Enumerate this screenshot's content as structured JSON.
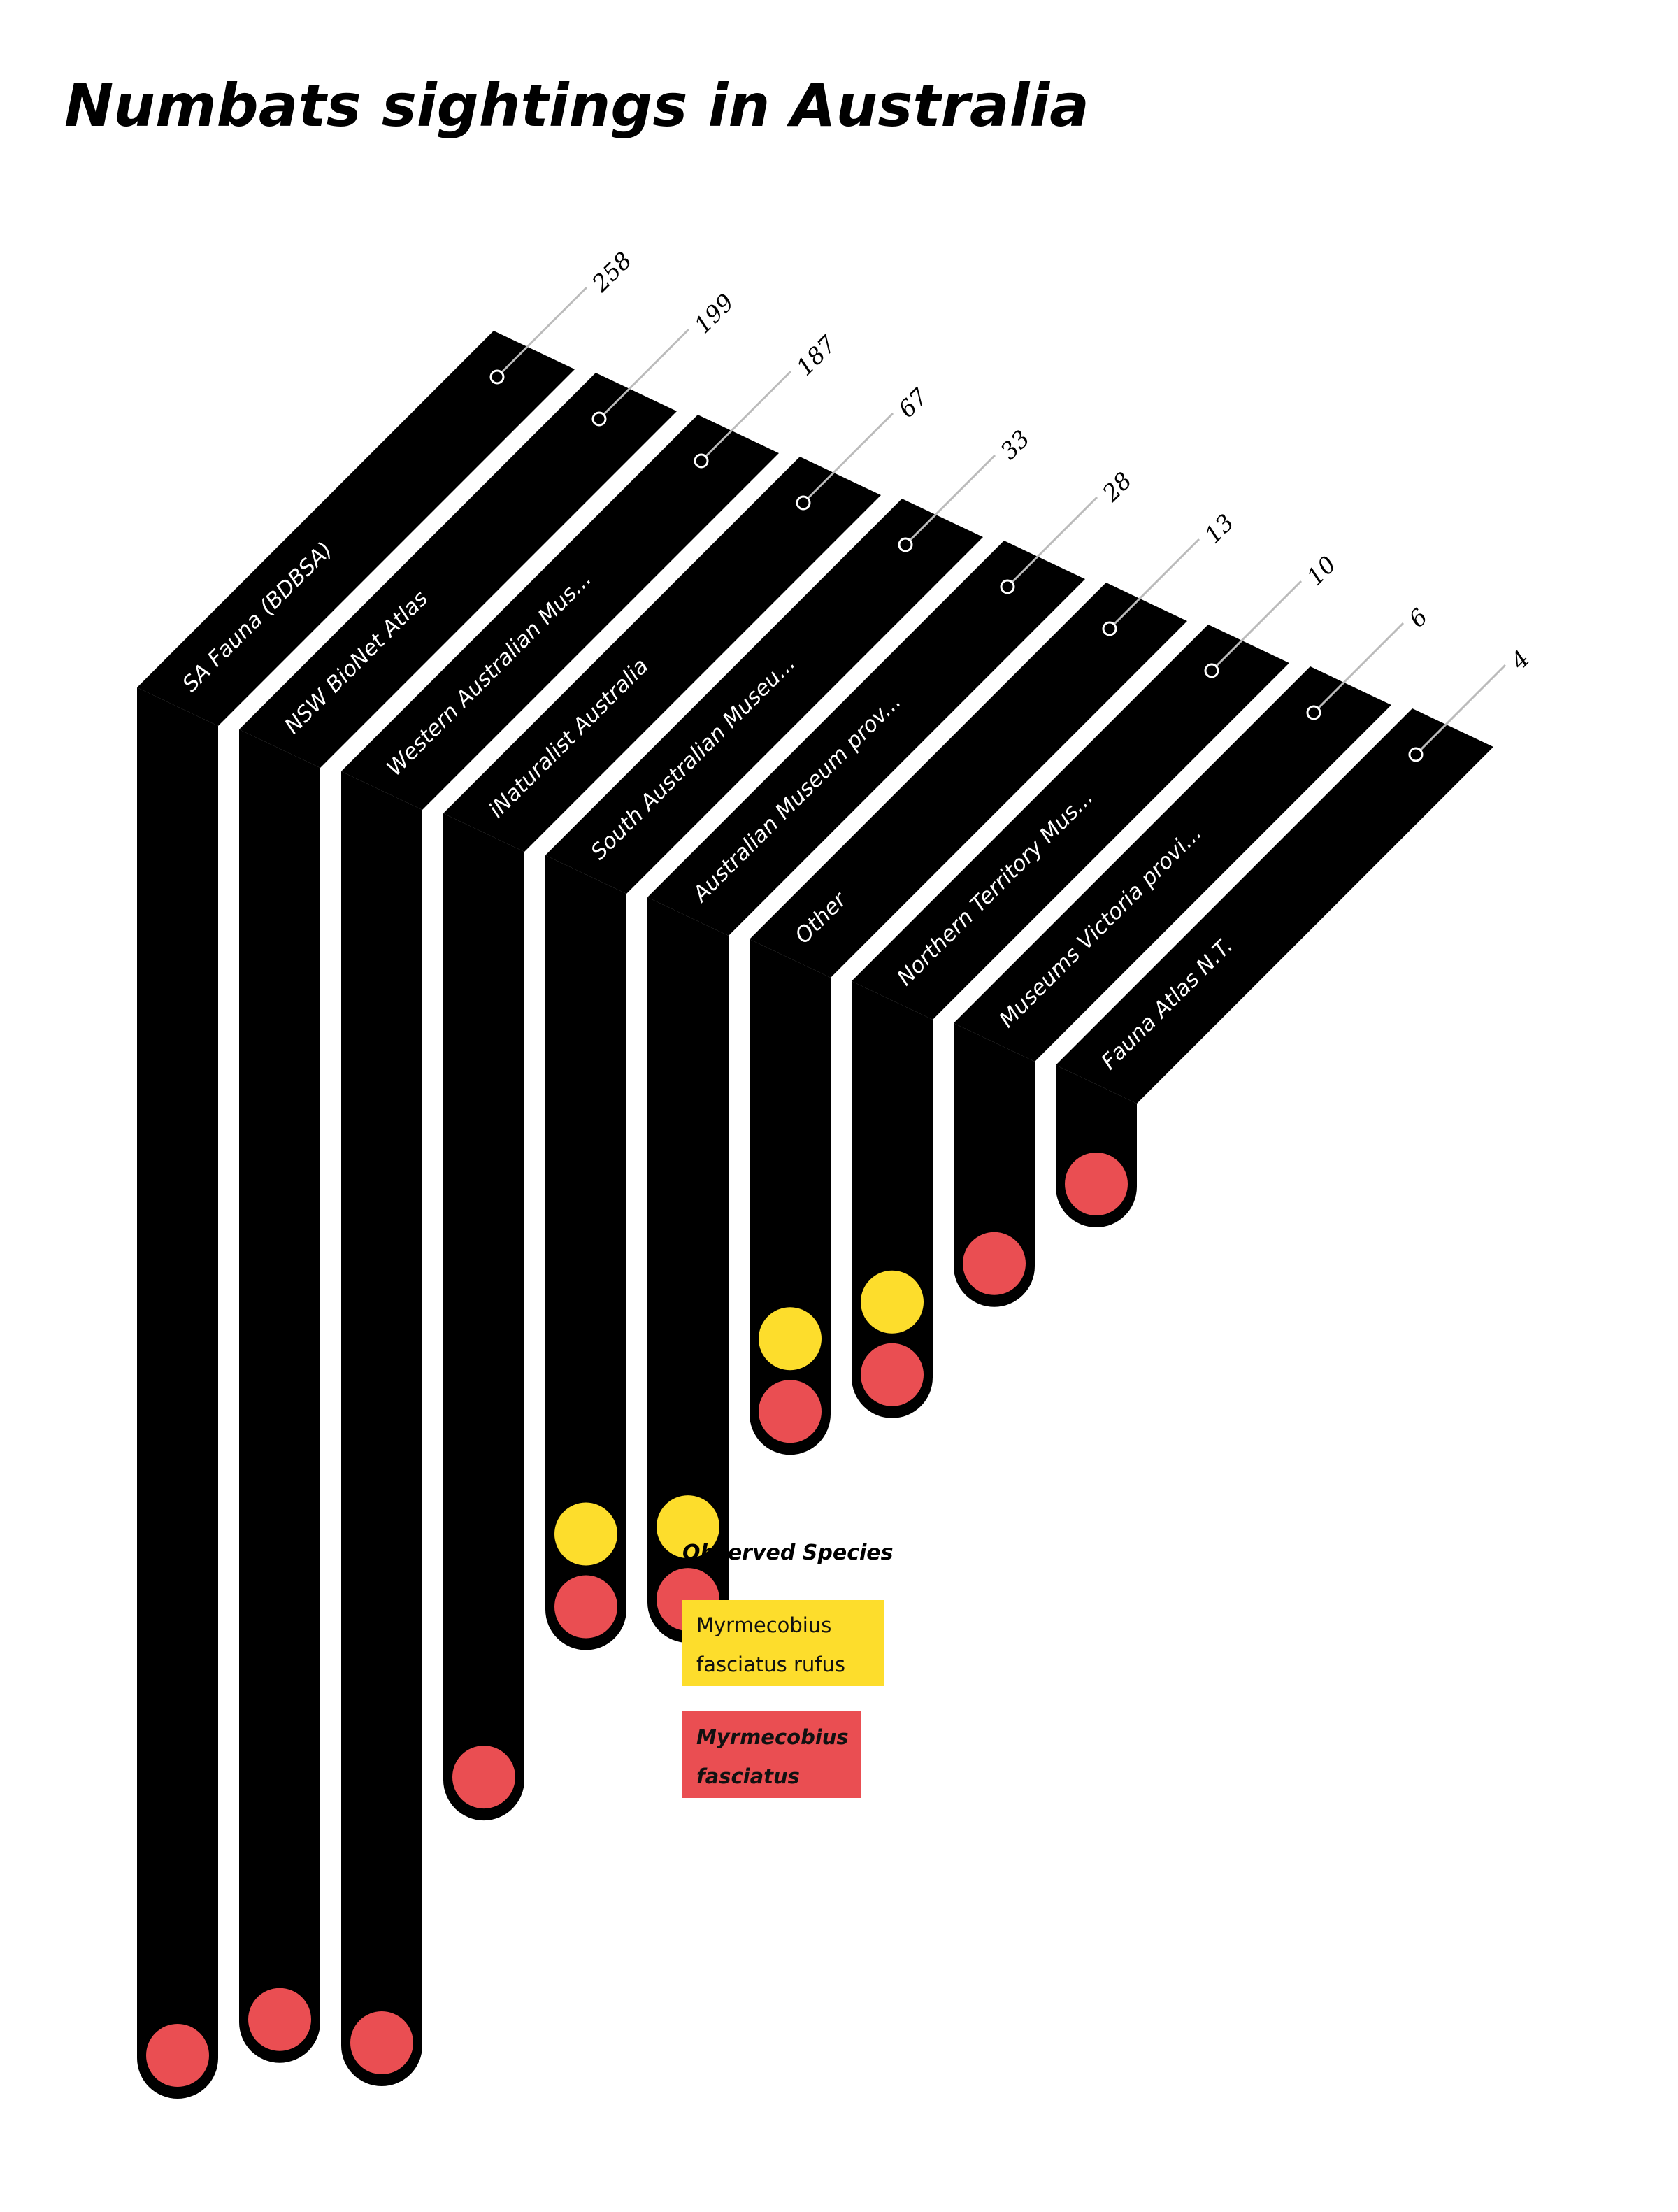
{
  "chart_data": {
    "type": "bar",
    "title": "Numbats sightings in Australia",
    "categories": [
      "SA Fauna (BDBSA)",
      "NSW BioNet Atlas",
      "Western Australian Mus...",
      "iNaturalist Australia",
      "South Australian Museu...",
      "Australian Museum prov...",
      "Other",
      "Northern Territory Mus...",
      "Museums Victoria provi...",
      "Fauna Atlas N.T."
    ],
    "values": [
      258,
      199,
      187,
      67,
      33,
      28,
      13,
      10,
      6,
      4
    ],
    "species_observed": [
      [
        "Myrmecobius fasciatus"
      ],
      [
        "Myrmecobius fasciatus"
      ],
      [
        "Myrmecobius fasciatus"
      ],
      [
        "Myrmecobius fasciatus"
      ],
      [
        "Myrmecobius fasciatus rufus",
        "Myrmecobius fasciatus"
      ],
      [
        "Myrmecobius fasciatus rufus",
        "Myrmecobius fasciatus"
      ],
      [
        "Myrmecobius fasciatus rufus",
        "Myrmecobius fasciatus"
      ],
      [
        "Myrmecobius fasciatus rufus",
        "Myrmecobius fasciatus"
      ],
      [
        "Myrmecobius fasciatus"
      ],
      [
        "Myrmecobius fasciatus"
      ]
    ],
    "legend": {
      "title": "Observed Species",
      "placement": "bottom-center",
      "items": [
        {
          "name": "Myrmecobius fasciatus rufus",
          "lines": [
            "Myrmecobius",
            "fasciatus rufus"
          ],
          "color": "#fddd2c"
        },
        {
          "name": "Myrmecobius fasciatus",
          "lines": [
            "Myrmecobius",
            "fasciatus"
          ],
          "color": "#ea4e52"
        }
      ]
    },
    "colors": {
      "bar": "#000000",
      "rufus": "#fddd2c",
      "fasciatus": "#ea4e52",
      "leader": "#bbbbbb"
    }
  }
}
